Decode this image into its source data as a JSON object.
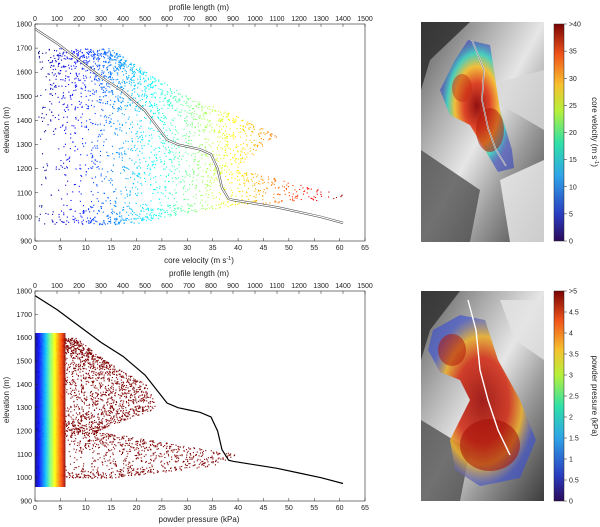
{
  "chart_data": [
    {
      "type": "scatter",
      "xlabel": "core velocity (m s",
      "xlabel_sup": "-1",
      "xlabel_tail": ")",
      "ylabel": "elevation (m)",
      "top_xlabel": "profile length (m)",
      "xlim": [
        0,
        65
      ],
      "ylim": [
        900,
        1800
      ],
      "top_xlim": [
        0,
        1500
      ],
      "x_ticks": [
        0,
        5,
        10,
        15,
        20,
        25,
        30,
        35,
        40,
        45,
        50,
        55,
        60,
        65
      ],
      "y_ticks": [
        900,
        1000,
        1100,
        1200,
        1300,
        1400,
        1500,
        1600,
        1700,
        1800
      ],
      "top_ticks": [
        0,
        100,
        200,
        300,
        400,
        500,
        600,
        700,
        800,
        900,
        1000,
        1100,
        1200,
        1300,
        1400,
        1500
      ],
      "color_scale": "jet",
      "scatter_bands": [
        {
          "y": 1700,
          "x_max": 15
        },
        {
          "y": 1600,
          "x_max": 22
        },
        {
          "y": 1500,
          "x_max": 30
        },
        {
          "y": 1400,
          "x_max": 42
        },
        {
          "y": 1330,
          "x_max": 48
        },
        {
          "y": 1300,
          "x_max": 45
        },
        {
          "y": 1200,
          "x_max": 40
        },
        {
          "y": 1120,
          "x_max": 55
        },
        {
          "y": 1080,
          "x_max": 63
        },
        {
          "y": 1050,
          "x_max": 40
        },
        {
          "y": 1000,
          "x_max": 25
        },
        {
          "y": 970,
          "x_max": 20
        }
      ],
      "series": [
        {
          "label": "profile",
          "color": "#ffffff",
          "x": [
            0,
            100,
            200,
            300,
            400,
            500,
            550,
            600,
            650,
            700,
            750,
            800,
            830,
            850,
            880,
            900,
            1000,
            1100,
            1200,
            1300,
            1400
          ],
          "y": [
            1780,
            1720,
            1650,
            1580,
            1520,
            1440,
            1380,
            1320,
            1300,
            1290,
            1280,
            1260,
            1200,
            1120,
            1075,
            1070,
            1055,
            1040,
            1020,
            1000,
            975
          ]
        }
      ]
    },
    {
      "type": "scatter",
      "xlabel": "powder pressure (kPa)",
      "ylabel": "elevation (m)",
      "top_xlabel": "profile length (m)",
      "xlim": [
        0,
        65
      ],
      "ylim": [
        900,
        1800
      ],
      "top_xlim": [
        0,
        1500
      ],
      "x_ticks": [
        0,
        5,
        10,
        15,
        20,
        25,
        30,
        35,
        40,
        45,
        50,
        55,
        60,
        65
      ],
      "y_ticks": [
        900,
        1000,
        1100,
        1200,
        1300,
        1400,
        1500,
        1600,
        1700,
        1800
      ],
      "top_ticks": [
        0,
        100,
        200,
        300,
        400,
        500,
        600,
        700,
        800,
        900,
        1000,
        1100,
        1200,
        1300,
        1400,
        1500
      ],
      "color_scale": "jet",
      "scatter_bands": [
        {
          "y": 1600,
          "x_max": 8
        },
        {
          "y": 1500,
          "x_max": 14
        },
        {
          "y": 1400,
          "x_max": 22
        },
        {
          "y": 1300,
          "x_max": 24
        },
        {
          "y": 1200,
          "x_max": 12
        },
        {
          "y": 1100,
          "x_max": 40
        },
        {
          "y": 1050,
          "x_max": 35
        },
        {
          "y": 1000,
          "x_max": 15
        }
      ],
      "series": [
        {
          "label": "profile",
          "color": "#000000",
          "x": [
            0,
            100,
            200,
            300,
            400,
            500,
            550,
            600,
            650,
            700,
            750,
            800,
            830,
            850,
            880,
            900,
            1000,
            1100,
            1200,
            1300,
            1400
          ],
          "y": [
            1780,
            1720,
            1650,
            1580,
            1520,
            1440,
            1380,
            1320,
            1300,
            1290,
            1280,
            1260,
            1200,
            1120,
            1075,
            1070,
            1055,
            1040,
            1020,
            1000,
            975
          ]
        }
      ]
    }
  ],
  "colorbars": [
    {
      "label": "core velocity (m s",
      "label_sup": "-1",
      "label_tail": ")",
      "ticks": [
        "0",
        "5",
        "10",
        "15",
        "20",
        "25",
        "30",
        "35",
        ">40"
      ]
    },
    {
      "label": "powder pressure (kPa)",
      "ticks": [
        "0",
        "0.5",
        "1",
        "1.5",
        "2",
        "2.5",
        "3",
        "3.5",
        "4",
        "4.5",
        ">5"
      ]
    }
  ]
}
